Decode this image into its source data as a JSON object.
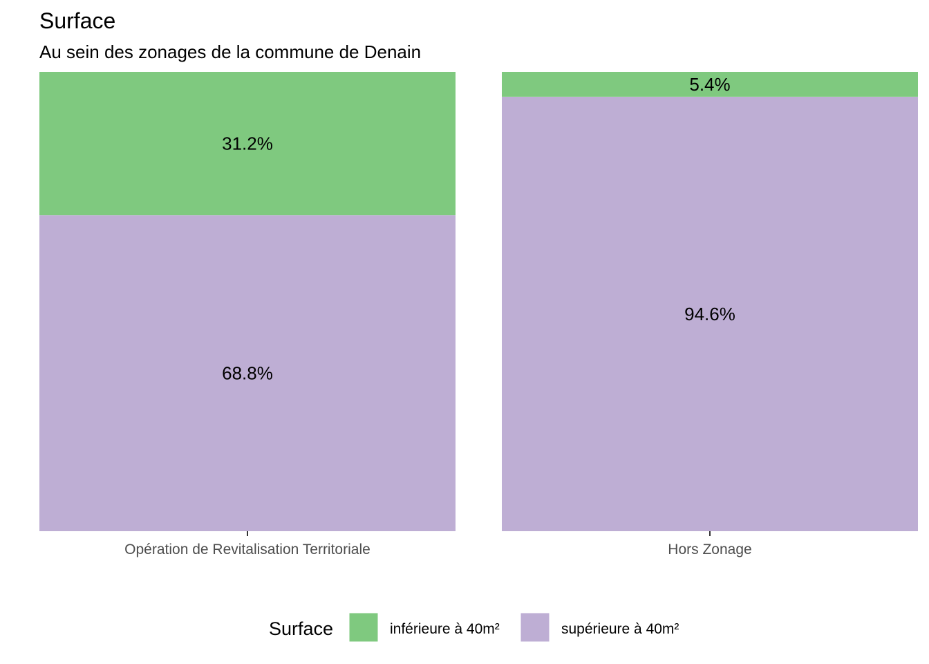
{
  "chart_data": {
    "type": "bar",
    "stacked": true,
    "normalized": true,
    "title": "Surface",
    "subtitle": "Au sein des zonages de la commune de Denain",
    "categories": [
      "Opération de Revitalisation Territoriale",
      "Hors Zonage"
    ],
    "series": [
      {
        "name": "inférieure à 40m²",
        "values": [
          31.2,
          5.4
        ],
        "labels": [
          "31.2%",
          "5.4%"
        ],
        "color": "#7FC97F"
      },
      {
        "name": "supérieure à 40m²",
        "values": [
          68.8,
          94.6
        ],
        "labels": [
          "68.8%",
          "94.6%"
        ],
        "color": "#BEAED4"
      }
    ],
    "ylim": [
      0,
      100
    ],
    "grid": false,
    "legend": {
      "title": "Surface",
      "position": "bottom"
    }
  }
}
